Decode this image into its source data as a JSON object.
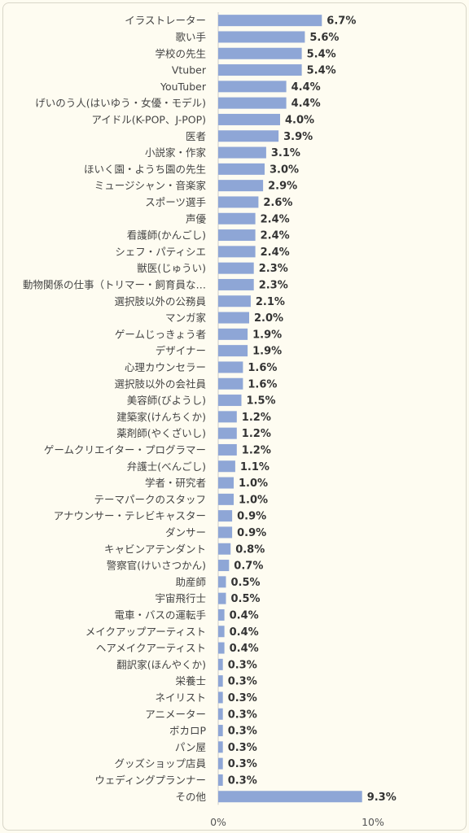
{
  "chart_data": {
    "type": "bar",
    "orientation": "horizontal",
    "xlim": [
      0,
      10
    ],
    "x_ticks": [
      "0%",
      "10%"
    ],
    "bar_color": "#8ea6d6",
    "categories": [
      "イラストレーター",
      "歌い手",
      "学校の先生",
      "Vtuber",
      "YouTuber",
      "げいのう人(はいゆう・女優・モデル)",
      "アイドル(K-POP、J-POP)",
      "医者",
      "小説家・作家",
      "ほいく園・ようち園の先生",
      "ミュージシャン・音楽家",
      "スポーツ選手",
      "声優",
      "看護師(かんごし)",
      "シェフ・パティシエ",
      "獣医(じゅうい)",
      "動物関係の仕事（トリマー・飼育員な…",
      "選択肢以外の公務員",
      "マンガ家",
      "ゲームじっきょう者",
      "デザイナー",
      "心理カウンセラー",
      "選択肢以外の会社員",
      "美容師(びようし)",
      "建築家(けんちくか)",
      "薬剤師(やくざいし)",
      "ゲームクリエイター・プログラマー",
      "弁護士(べんごし)",
      "学者・研究者",
      "テーマパークのスタッフ",
      "アナウンサー・テレビキャスター",
      "ダンサー",
      "キャビンアテンダント",
      "警察官(けいさつかん)",
      "助産師",
      "宇宙飛行士",
      "電車・バスの運転手",
      "メイクアップアーティスト",
      "ヘアメイクアーティスト",
      "翻訳家(ほんやくか)",
      "栄養士",
      "ネイリスト",
      "アニメーター",
      "ボカロP",
      "パン屋",
      "グッズショップ店員",
      "ウェディングプランナー",
      "その他"
    ],
    "values": [
      6.7,
      5.6,
      5.4,
      5.4,
      4.4,
      4.4,
      4.0,
      3.9,
      3.1,
      3.0,
      2.9,
      2.6,
      2.4,
      2.4,
      2.4,
      2.3,
      2.3,
      2.1,
      2.0,
      1.9,
      1.9,
      1.6,
      1.6,
      1.5,
      1.2,
      1.2,
      1.2,
      1.1,
      1.0,
      1.0,
      0.9,
      0.9,
      0.8,
      0.7,
      0.5,
      0.5,
      0.4,
      0.4,
      0.4,
      0.3,
      0.3,
      0.3,
      0.3,
      0.3,
      0.3,
      0.3,
      0.3,
      9.3
    ],
    "value_labels": [
      "6.7%",
      "5.6%",
      "5.4%",
      "5.4%",
      "4.4%",
      "4.4%",
      "4.0%",
      "3.9%",
      "3.1%",
      "3.0%",
      "2.9%",
      "2.6%",
      "2.4%",
      "2.4%",
      "2.4%",
      "2.3%",
      "2.3%",
      "2.1%",
      "2.0%",
      "1.9%",
      "1.9%",
      "1.6%",
      "1.6%",
      "1.5%",
      "1.2%",
      "1.2%",
      "1.2%",
      "1.1%",
      "1.0%",
      "1.0%",
      "0.9%",
      "0.9%",
      "0.8%",
      "0.7%",
      "0.5%",
      "0.5%",
      "0.4%",
      "0.4%",
      "0.4%",
      "0.3%",
      "0.3%",
      "0.3%",
      "0.3%",
      "0.3%",
      "0.3%",
      "0.3%",
      "0.3%",
      "9.3%"
    ],
    "grid": false,
    "legend": "none"
  }
}
